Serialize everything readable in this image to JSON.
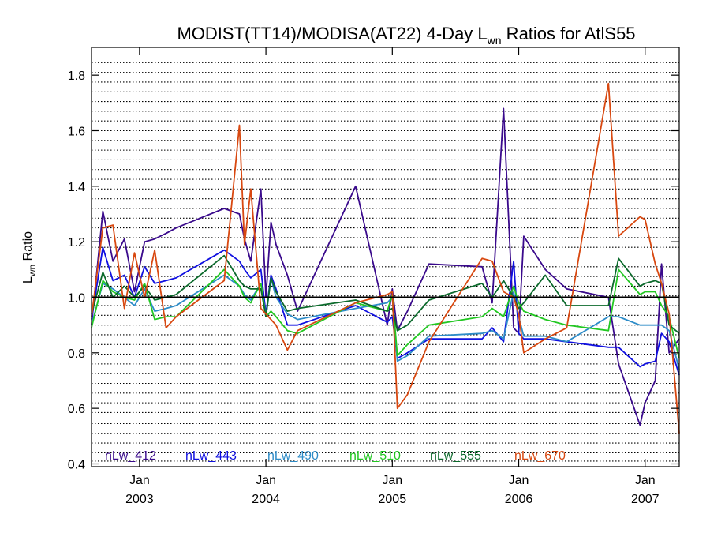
{
  "chart_data": {
    "type": "line",
    "title": "MODIST(TT14)/MODISA(AT22) 4-Day L",
    "title_sub": "wn",
    "title_suffix": " Ratios for AtlS55",
    "ylabel": "L",
    "ylabel_sub": "wn",
    "ylabel_suffix": " Ratio",
    "ylim": [
      0.39,
      1.9
    ],
    "xlim": [
      2002.62,
      2007.27
    ],
    "yticks": [
      0.4,
      0.6,
      0.8,
      1.0,
      1.2,
      1.4,
      1.6,
      1.8
    ],
    "ytick_labels": [
      "0.4",
      "0.6",
      "0.8",
      "1.0",
      "1.2",
      "1.4",
      "1.6",
      "1.8"
    ],
    "grid_y": [
      0.41,
      0.44,
      0.475,
      0.51,
      0.545,
      0.585,
      0.62,
      0.655,
      0.69,
      0.725,
      0.76,
      0.795,
      0.83,
      0.865,
      0.9,
      0.935,
      0.97,
      1.005,
      1.04,
      1.075,
      1.11,
      1.145,
      1.18,
      1.215,
      1.25,
      1.285,
      1.32,
      1.355,
      1.39,
      1.425,
      1.46,
      1.495,
      1.53,
      1.565,
      1.6,
      1.635,
      1.67,
      1.705,
      1.74,
      1.775,
      1.81,
      1.845
    ],
    "grid": "dotted horizontal",
    "reference_line": 1.0,
    "xticks": [
      2003.0,
      2004.0,
      2005.0,
      2006.0,
      2007.0
    ],
    "xtick_labels_month": [
      "Jan",
      "Jan",
      "Jan",
      "Jan",
      "Jan"
    ],
    "xtick_labels_year": [
      "2003",
      "2004",
      "2005",
      "2006",
      "2007"
    ],
    "legend_placement": "bottom",
    "x": [
      2002.62,
      2002.71,
      2002.79,
      2002.88,
      2002.96,
      2003.04,
      2003.12,
      2003.21,
      2003.29,
      2003.67,
      2003.79,
      2003.83,
      2003.88,
      2003.96,
      2004.0,
      2004.04,
      2004.08,
      2004.17,
      2004.25,
      2004.71,
      2004.96,
      2005.0,
      2005.04,
      2005.12,
      2005.29,
      2005.71,
      2005.79,
      2005.88,
      2005.96,
      2006.0,
      2006.04,
      2006.21,
      2006.38,
      2006.71,
      2006.79,
      2006.96,
      2007.0,
      2007.08,
      2007.13,
      2007.19,
      2007.27
    ],
    "series": [
      {
        "name": "nLw_412",
        "color": "#3a0a8c",
        "values": [
          0.9,
          1.31,
          1.13,
          1.21,
          1.02,
          1.2,
          1.21,
          1.23,
          1.25,
          1.32,
          1.3,
          1.21,
          1.13,
          1.39,
          1.0,
          1.27,
          1.19,
          1.08,
          0.95,
          1.4,
          0.9,
          1.03,
          0.88,
          0.95,
          1.12,
          1.11,
          0.98,
          1.68,
          0.89,
          0.87,
          1.22,
          1.1,
          1.03,
          1.0,
          0.76,
          0.54,
          0.62,
          0.7,
          1.12,
          0.8,
          0.85
        ]
      },
      {
        "name": "nLw_443",
        "color": "#1010e0",
        "values": [
          0.92,
          1.18,
          1.06,
          1.08,
          1.0,
          1.11,
          1.05,
          1.06,
          1.07,
          1.17,
          1.13,
          1.1,
          1.07,
          1.1,
          0.94,
          1.08,
          1.03,
          0.9,
          0.9,
          0.97,
          0.91,
          0.93,
          0.78,
          0.8,
          0.85,
          0.85,
          0.89,
          0.84,
          1.13,
          0.87,
          0.85,
          0.85,
          0.84,
          0.82,
          0.82,
          0.75,
          0.76,
          0.77,
          0.87,
          0.84,
          0.72
        ]
      },
      {
        "name": "nLw_490",
        "color": "#2d8cc8",
        "values": [
          0.9,
          1.05,
          1.03,
          1.0,
          0.97,
          1.03,
          0.95,
          0.96,
          0.97,
          1.08,
          1.04,
          1.01,
          0.99,
          1.05,
          0.93,
          1.07,
          1.0,
          0.94,
          0.92,
          0.96,
          0.98,
          1.0,
          0.77,
          0.79,
          0.86,
          0.87,
          0.88,
          0.85,
          1.02,
          0.93,
          0.86,
          0.86,
          0.84,
          0.93,
          0.93,
          0.9,
          0.9,
          0.9,
          0.9,
          0.88,
          0.74
        ]
      },
      {
        "name": "nLw_510",
        "color": "#22c822",
        "values": [
          0.89,
          1.06,
          1.02,
          1.0,
          0.99,
          1.05,
          0.92,
          0.93,
          0.93,
          1.1,
          1.04,
          1.0,
          0.98,
          1.05,
          0.93,
          0.95,
          0.93,
          0.88,
          0.87,
          0.98,
          0.95,
          1.01,
          0.79,
          0.83,
          0.9,
          0.93,
          0.96,
          0.93,
          1.04,
          0.98,
          0.95,
          0.92,
          0.9,
          0.88,
          1.1,
          1.01,
          1.02,
          1.02,
          0.97,
          0.93,
          0.78
        ]
      },
      {
        "name": "nLw_555",
        "color": "#0c6a2c",
        "values": [
          0.94,
          1.09,
          1.0,
          1.04,
          1.0,
          1.04,
          0.99,
          1.0,
          1.01,
          1.15,
          1.06,
          1.04,
          1.03,
          1.03,
          0.93,
          1.07,
          1.02,
          0.95,
          0.96,
          0.99,
          0.95,
          0.96,
          0.88,
          0.9,
          0.99,
          1.05,
          1.0,
          1.06,
          1.0,
          0.96,
          0.98,
          1.08,
          0.97,
          0.97,
          1.14,
          1.04,
          1.05,
          1.06,
          1.05,
          0.9,
          0.87
        ]
      },
      {
        "name": "nLw_670",
        "color": "#d84810",
        "values": [
          0.93,
          1.25,
          1.26,
          0.96,
          1.16,
          1.0,
          1.17,
          0.89,
          0.93,
          1.06,
          1.62,
          1.19,
          1.39,
          0.96,
          0.94,
          0.92,
          0.9,
          0.81,
          0.88,
          0.98,
          1.01,
          1.02,
          0.6,
          0.65,
          0.84,
          1.14,
          1.13,
          1.02,
          1.0,
          0.94,
          0.8,
          0.85,
          0.89,
          1.77,
          1.22,
          1.29,
          1.28,
          1.12,
          1.05,
          0.94,
          0.51
        ]
      }
    ]
  }
}
